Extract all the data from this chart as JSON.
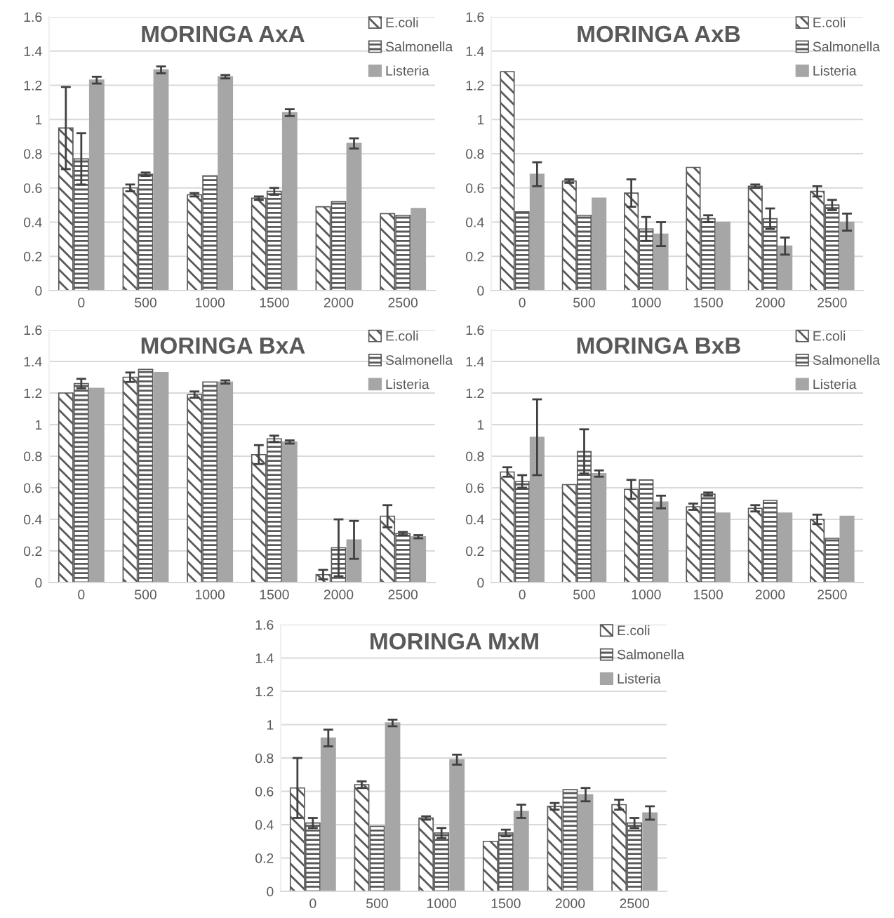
{
  "chart_data": [
    {
      "type": "bar",
      "title": "MORINGA AxA",
      "categories": [
        "0",
        "500",
        "1000",
        "1500",
        "2000",
        "2500"
      ],
      "ylim": [
        0,
        1.6
      ],
      "yticks": [
        0,
        0.2,
        0.4,
        0.6,
        0.8,
        1,
        1.2,
        1.4,
        1.6
      ],
      "grid": "y",
      "legend": "top right",
      "series": [
        {
          "name": "E.coli",
          "color": "#595959",
          "values": [
            0.95,
            0.6,
            0.56,
            0.54,
            0.49,
            0.45
          ],
          "errors": [
            0.24,
            0.02,
            0.01,
            0.01,
            null,
            null
          ]
        },
        {
          "name": "Salmonella",
          "color": "#595959",
          "values": [
            0.77,
            0.68,
            0.67,
            0.58,
            0.52,
            0.44
          ],
          "errors": [
            0.15,
            0.01,
            null,
            0.02,
            null,
            null
          ]
        },
        {
          "name": "Listeria",
          "color": "#a6a6a6",
          "values": [
            1.23,
            1.29,
            1.25,
            1.04,
            0.86,
            0.48
          ],
          "errors": [
            0.02,
            0.02,
            0.01,
            0.02,
            0.03,
            null
          ]
        }
      ]
    },
    {
      "type": "bar",
      "title": "MORINGA AxB",
      "categories": [
        "0",
        "500",
        "1000",
        "1500",
        "2000",
        "2500"
      ],
      "ylim": [
        0,
        1.6
      ],
      "yticks": [
        0,
        0.2,
        0.4,
        0.6,
        0.8,
        1,
        1.2,
        1.4,
        1.6
      ],
      "grid": "y",
      "legend": "top right",
      "series": [
        {
          "name": "E.coli",
          "color": "#595959",
          "values": [
            1.28,
            0.64,
            0.57,
            0.72,
            0.61,
            0.58
          ],
          "errors": [
            null,
            0.01,
            0.08,
            null,
            0.01,
            0.03
          ]
        },
        {
          "name": "Salmonella",
          "color": "#595959",
          "values": [
            0.46,
            0.44,
            0.36,
            0.42,
            0.42,
            0.5
          ],
          "errors": [
            null,
            null,
            0.07,
            0.02,
            0.06,
            0.03
          ]
        },
        {
          "name": "Listeria",
          "color": "#a6a6a6",
          "values": [
            0.68,
            0.54,
            0.33,
            0.4,
            0.26,
            0.4
          ],
          "errors": [
            0.07,
            null,
            0.07,
            null,
            0.05,
            0.05
          ]
        }
      ]
    },
    {
      "type": "bar",
      "title": "MORINGA BxA",
      "categories": [
        "0",
        "500",
        "1000",
        "1500",
        "2000",
        "2500"
      ],
      "ylim": [
        0,
        1.6
      ],
      "yticks": [
        0,
        0.2,
        0.4,
        0.6,
        0.8,
        1,
        1.2,
        1.4,
        1.6
      ],
      "grid": "y",
      "legend": "top right",
      "series": [
        {
          "name": "E.coli",
          "color": "#595959",
          "values": [
            1.2,
            1.3,
            1.19,
            0.81,
            0.05,
            0.42
          ],
          "errors": [
            null,
            0.03,
            0.02,
            0.06,
            0.03,
            0.07
          ]
        },
        {
          "name": "Salmonella",
          "color": "#595959",
          "values": [
            1.26,
            1.35,
            1.27,
            0.91,
            0.22,
            0.31
          ],
          "errors": [
            0.03,
            null,
            null,
            0.02,
            0.18,
            0.01
          ]
        },
        {
          "name": "Listeria",
          "color": "#a6a6a6",
          "values": [
            1.23,
            1.33,
            1.27,
            0.89,
            0.27,
            0.29
          ],
          "errors": [
            null,
            null,
            0.01,
            0.01,
            0.12,
            0.01
          ]
        }
      ]
    },
    {
      "type": "bar",
      "title": "MORINGA BxB",
      "categories": [
        "0",
        "500",
        "1000",
        "1500",
        "2000",
        "2500"
      ],
      "ylim": [
        0,
        1.6
      ],
      "yticks": [
        0,
        0.2,
        0.4,
        0.6,
        0.8,
        1,
        1.2,
        1.4,
        1.6
      ],
      "grid": "y",
      "legend": "top right",
      "series": [
        {
          "name": "E.coli",
          "color": "#595959",
          "values": [
            0.7,
            0.62,
            0.59,
            0.48,
            0.47,
            0.4
          ],
          "errors": [
            0.03,
            null,
            0.06,
            0.02,
            0.02,
            0.03
          ]
        },
        {
          "name": "Salmonella",
          "color": "#595959",
          "values": [
            0.64,
            0.83,
            0.65,
            0.56,
            0.52,
            0.28
          ],
          "errors": [
            0.04,
            0.14,
            null,
            0.01,
            null,
            null
          ]
        },
        {
          "name": "Listeria",
          "color": "#a6a6a6",
          "values": [
            0.92,
            0.69,
            0.51,
            0.44,
            0.44,
            0.42
          ],
          "errors": [
            0.24,
            0.02,
            0.04,
            null,
            null,
            null
          ]
        }
      ]
    },
    {
      "type": "bar",
      "title": "MORINGA MxM",
      "categories": [
        "0",
        "500",
        "1000",
        "1500",
        "2000",
        "2500"
      ],
      "ylim": [
        0,
        1.6
      ],
      "yticks": [
        0,
        0.2,
        0.4,
        0.6,
        0.8,
        1,
        1.2,
        1.4,
        1.6
      ],
      "grid": "y",
      "legend": "top right",
      "series": [
        {
          "name": "E.coli",
          "color": "#595959",
          "values": [
            0.62,
            0.64,
            0.44,
            0.3,
            0.51,
            0.52
          ],
          "errors": [
            0.18,
            0.02,
            0.01,
            null,
            0.02,
            0.03
          ]
        },
        {
          "name": "Salmonella",
          "color": "#595959",
          "values": [
            0.41,
            0.39,
            0.35,
            0.35,
            0.61,
            0.41
          ],
          "errors": [
            0.03,
            null,
            0.03,
            0.02,
            null,
            0.03
          ]
        },
        {
          "name": "Listeria",
          "color": "#a6a6a6",
          "values": [
            0.92,
            1.01,
            0.79,
            0.48,
            0.58,
            0.47
          ],
          "errors": [
            0.05,
            0.02,
            0.03,
            0.04,
            0.04,
            0.04
          ]
        }
      ]
    }
  ]
}
